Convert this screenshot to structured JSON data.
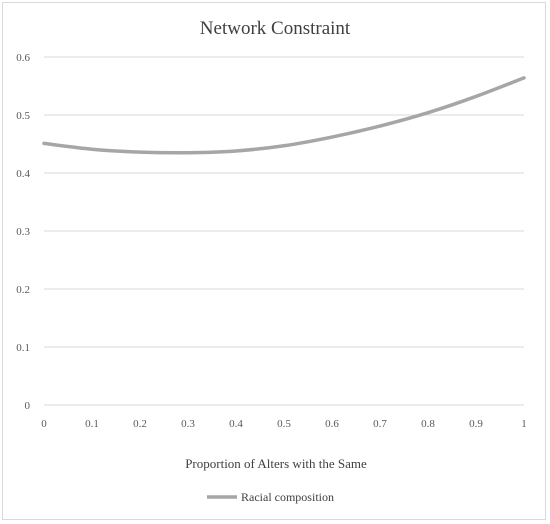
{
  "chart_data": {
    "type": "line",
    "title": "Network Constraint",
    "xlabel": "Proportion of Alters with the Same",
    "ylabel": "",
    "x": [
      0,
      0.1,
      0.2,
      0.3,
      0.4,
      0.5,
      0.6,
      0.7,
      0.8,
      0.9,
      1
    ],
    "xlim": [
      0,
      1
    ],
    "ylim": [
      0,
      0.6
    ],
    "x_ticks": [
      "0",
      "0.1",
      "0.2",
      "0.3",
      "0.4",
      "0.5",
      "0.6",
      "0.7",
      "0.8",
      "0.9",
      "1"
    ],
    "y_ticks": [
      "0",
      "0.1",
      "0.2",
      "0.3",
      "0.4",
      "0.5",
      "0.6"
    ],
    "series": [
      {
        "name": "Racial composition",
        "color": "#a6a6a6",
        "values": [
          0.451,
          0.441,
          0.436,
          0.435,
          0.438,
          0.447,
          0.462,
          0.481,
          0.504,
          0.532,
          0.564
        ]
      }
    ],
    "grid": true,
    "legend_position": "bottom"
  }
}
